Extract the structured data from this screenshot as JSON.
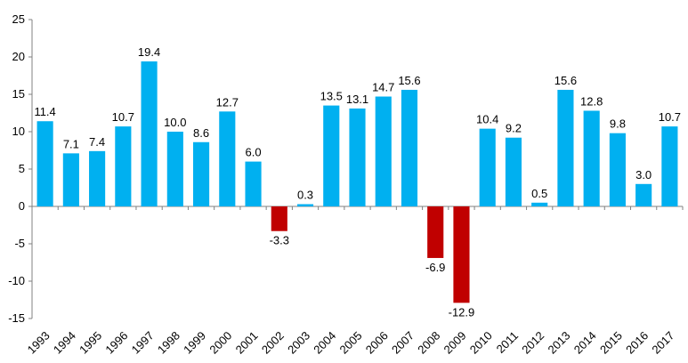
{
  "chart_data": {
    "type": "bar",
    "title": "",
    "xlabel": "",
    "ylabel": "",
    "ylim": [
      -15,
      25
    ],
    "ytick_step": 5,
    "grid": false,
    "legend": "none",
    "categories": [
      "1993",
      "1994",
      "1995",
      "1996",
      "1997",
      "1998",
      "1999",
      "2000",
      "2001",
      "2002",
      "2003",
      "2004",
      "2005",
      "2006",
      "2007",
      "2008",
      "2009",
      "2010",
      "2011",
      "2012",
      "2013",
      "2014",
      "2015",
      "2016",
      "2017"
    ],
    "values": [
      11.4,
      7.1,
      7.4,
      10.7,
      19.4,
      10.0,
      8.6,
      12.7,
      6.0,
      -3.3,
      0.3,
      13.5,
      13.1,
      14.7,
      15.6,
      -6.9,
      -12.9,
      10.4,
      9.2,
      0.5,
      15.6,
      12.8,
      9.8,
      3.0,
      10.7
    ],
    "data_labels": [
      "11.4",
      "7.1",
      "7.4",
      "10.7",
      "19.4",
      "10.0",
      "8.6",
      "12.7",
      "6.0",
      "-3.3",
      "0.3",
      "13.5",
      "13.1",
      "14.7",
      "15.6",
      "-6.9",
      "-12.9",
      "10.4",
      "9.2",
      "0.5",
      "15.6",
      "12.8",
      "9.8",
      "3.0",
      "10.7"
    ],
    "colors": {
      "positive": "#00b0f0",
      "negative": "#c00000",
      "axis": "#808080"
    }
  }
}
